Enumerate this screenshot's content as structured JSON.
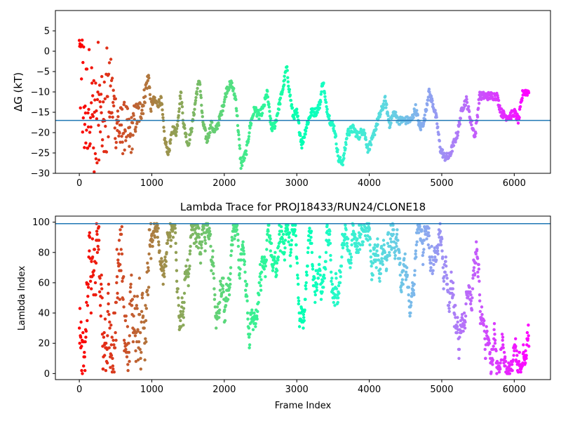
{
  "chart_data": [
    {
      "id": "dg",
      "type": "scatter",
      "title": "",
      "xlabel": "",
      "ylabel": "ΔG (kT)",
      "xlim": [
        -330,
        6500
      ],
      "ylim": [
        -30,
        10
      ],
      "xticks": [
        0,
        1000,
        2000,
        3000,
        4000,
        5000,
        6000
      ],
      "yticks": [
        -30,
        -25,
        -20,
        -15,
        -10,
        -5,
        0,
        5
      ],
      "xtick_labels": [
        "0",
        "1000",
        "2000",
        "3000",
        "4000",
        "5000",
        "6000"
      ],
      "ytick_labels": [
        "−30",
        "−25",
        "−20",
        "−15",
        "−10",
        "−5",
        "0",
        "5"
      ],
      "hline": -17,
      "hline_color": "#1f77b4",
      "colormap": "rainbow (red at frame 0 → violet at last frame)",
      "x_range": [
        0,
        6200
      ],
      "grid": false,
      "legend": "none",
      "anchors": [
        [
          0,
          -2
        ],
        [
          40,
          -8
        ],
        [
          90,
          -15
        ],
        [
          150,
          -10
        ],
        [
          220,
          -20
        ],
        [
          290,
          -14
        ],
        [
          360,
          -18
        ],
        [
          430,
          -10
        ],
        [
          500,
          -16
        ],
        [
          570,
          -20
        ],
        [
          640,
          -18
        ],
        [
          700,
          -22
        ],
        [
          760,
          -17
        ],
        [
          830,
          -15
        ],
        [
          880,
          -13
        ],
        [
          930,
          -8
        ],
        [
          960,
          -6
        ],
        [
          985,
          -14
        ],
        [
          1020,
          -12
        ],
        [
          1080,
          -13
        ],
        [
          1130,
          -12
        ],
        [
          1180,
          -22
        ],
        [
          1230,
          -25
        ],
        [
          1290,
          -19
        ],
        [
          1340,
          -20
        ],
        [
          1400,
          -10
        ],
        [
          1440,
          -18
        ],
        [
          1500,
          -23
        ],
        [
          1560,
          -18
        ],
        [
          1620,
          -10
        ],
        [
          1660,
          -7
        ],
        [
          1700,
          -17
        ],
        [
          1760,
          -22
        ],
        [
          1820,
          -18
        ],
        [
          1870,
          -20
        ],
        [
          1930,
          -17
        ],
        [
          1990,
          -13
        ],
        [
          2040,
          -9
        ],
        [
          2100,
          -8
        ],
        [
          2160,
          -12
        ],
        [
          2230,
          -28
        ],
        [
          2300,
          -25
        ],
        [
          2360,
          -18
        ],
        [
          2420,
          -14
        ],
        [
          2480,
          -16
        ],
        [
          2540,
          -14
        ],
        [
          2590,
          -10
        ],
        [
          2650,
          -19
        ],
        [
          2700,
          -18
        ],
        [
          2760,
          -13
        ],
        [
          2810,
          -9
        ],
        [
          2860,
          -4
        ],
        [
          2900,
          -10
        ],
        [
          2950,
          -16
        ],
        [
          3000,
          -15
        ],
        [
          3070,
          -23
        ],
        [
          3140,
          -18
        ],
        [
          3200,
          -15
        ],
        [
          3260,
          -15
        ],
        [
          3320,
          -13
        ],
        [
          3360,
          -7
        ],
        [
          3400,
          -13
        ],
        [
          3460,
          -17
        ],
        [
          3520,
          -19
        ],
        [
          3580,
          -27
        ],
        [
          3640,
          -27
        ],
        [
          3700,
          -20
        ],
        [
          3780,
          -19
        ],
        [
          3850,
          -21
        ],
        [
          3920,
          -19
        ],
        [
          3980,
          -24
        ],
        [
          4040,
          -22
        ],
        [
          4100,
          -18
        ],
        [
          4160,
          -15
        ],
        [
          4220,
          -12
        ],
        [
          4280,
          -18
        ],
        [
          4340,
          -15
        ],
        [
          4400,
          -17
        ],
        [
          4460,
          -17
        ],
        [
          4520,
          -17
        ],
        [
          4580,
          -17
        ],
        [
          4640,
          -14
        ],
        [
          4700,
          -19
        ],
        [
          4760,
          -17
        ],
        [
          4820,
          -10
        ],
        [
          4880,
          -13
        ],
        [
          4930,
          -17
        ],
        [
          4980,
          -24
        ],
        [
          5040,
          -26
        ],
        [
          5100,
          -26
        ],
        [
          5160,
          -23
        ],
        [
          5220,
          -20
        ],
        [
          5280,
          -14
        ],
        [
          5340,
          -12
        ],
        [
          5400,
          -17
        ],
        [
          5460,
          -21
        ],
        [
          5520,
          -11
        ],
        [
          5580,
          -11
        ],
        [
          5640,
          -11
        ],
        [
          5700,
          -11
        ],
        [
          5760,
          -11
        ],
        [
          5820,
          -15
        ],
        [
          5880,
          -16
        ],
        [
          5940,
          -16
        ],
        [
          6000,
          -15
        ],
        [
          6060,
          -17
        ],
        [
          6120,
          -10
        ],
        [
          6200,
          -10
        ]
      ]
    },
    {
      "id": "lambda",
      "type": "scatter",
      "title": "Lambda Trace for PROJ18433/RUN24/CLONE18",
      "xlabel": "Frame Index",
      "ylabel": "Lambda Index",
      "xlim": [
        -330,
        6500
      ],
      "ylim": [
        -4,
        104
      ],
      "xticks": [
        0,
        1000,
        2000,
        3000,
        4000,
        5000,
        6000
      ],
      "yticks": [
        0,
        20,
        40,
        60,
        80,
        100
      ],
      "xtick_labels": [
        "0",
        "1000",
        "2000",
        "3000",
        "4000",
        "5000",
        "6000"
      ],
      "ytick_labels": [
        "0",
        "20",
        "40",
        "60",
        "80",
        "100"
      ],
      "hline": 99,
      "hline_color": "#1f77b4",
      "colormap": "rainbow (red at frame 0 → violet at last frame)",
      "x_range": [
        0,
        6200
      ],
      "lambda_range": [
        0,
        99
      ],
      "grid": false,
      "legend": "none"
    }
  ]
}
